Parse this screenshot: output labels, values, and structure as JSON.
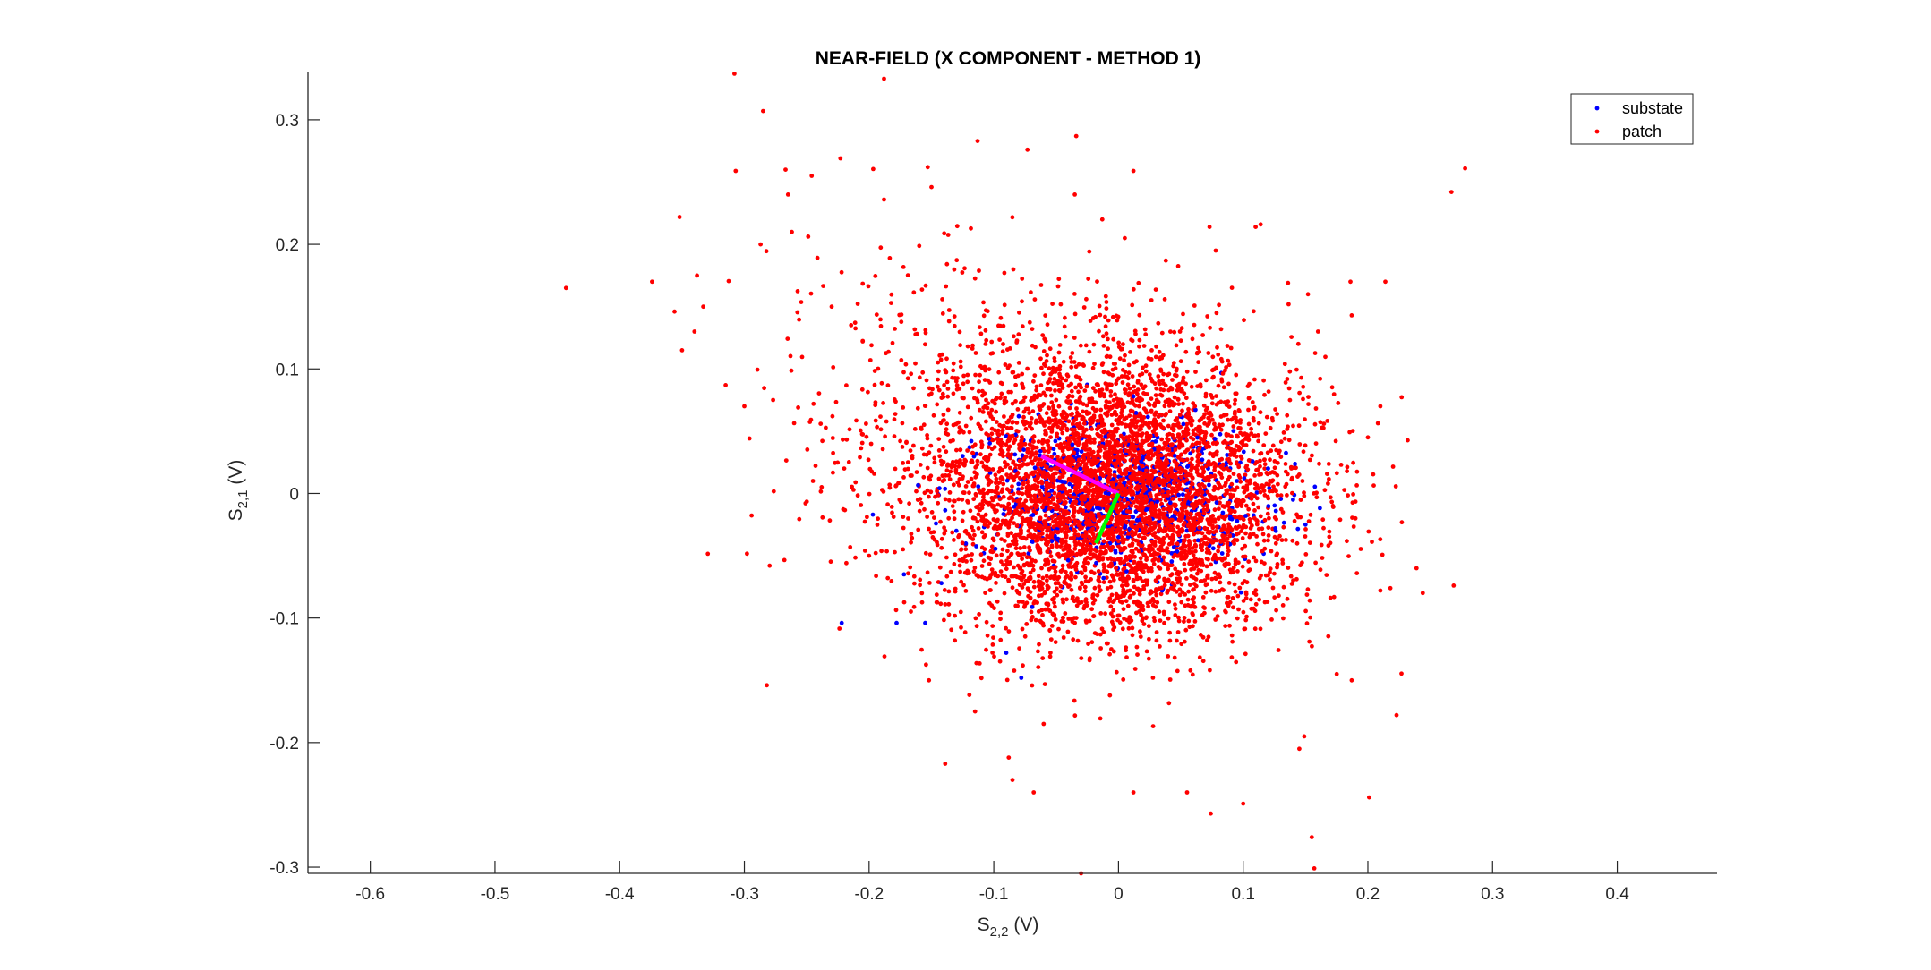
{
  "chart_data": {
    "type": "scatter",
    "title": "NEAR-FIELD (X COMPONENT - METHOD 1)",
    "xlabel": {
      "base": "S",
      "sub": "2,2",
      "unit": " (V)"
    },
    "ylabel": {
      "base": "S",
      "sub": "2,1",
      "unit": " (V)"
    },
    "xlim": [
      -0.65,
      0.48
    ],
    "ylim": [
      -0.305,
      0.338
    ],
    "xticks": [
      -0.6,
      -0.5,
      -0.4,
      -0.3,
      -0.2,
      -0.1,
      0,
      0.1,
      0.2,
      0.3,
      0.4
    ],
    "xtick_labels": [
      "-0.6",
      "-0.5",
      "-0.4",
      "-0.3",
      "-0.2",
      "-0.1",
      "0",
      "0.1",
      "0.2",
      "0.3",
      "0.4"
    ],
    "yticks": [
      -0.3,
      -0.2,
      -0.1,
      0,
      0.1,
      0.2,
      0.3
    ],
    "ytick_labels": [
      "-0.3",
      "-0.2",
      "-0.1",
      "0",
      "0.1",
      "0.2",
      "0.3"
    ],
    "grid": false,
    "legend_position": "top-right",
    "series": [
      {
        "name": "substate",
        "color": "#0000ff",
        "points": [
          [
            -0.222,
            -0.104
          ],
          [
            -0.178,
            -0.104
          ],
          [
            -0.155,
            -0.104
          ],
          [
            -0.197,
            -0.017
          ],
          [
            -0.172,
            -0.065
          ],
          [
            -0.142,
            -0.072
          ],
          [
            -0.108,
            -0.048
          ],
          [
            -0.118,
            0.042
          ],
          [
            -0.08,
            0.062
          ],
          [
            -0.038,
            0.072
          ],
          [
            0.012,
            0.078
          ],
          [
            0.055,
            0.064
          ],
          [
            0.088,
            0.04
          ],
          [
            0.102,
            -0.018
          ],
          [
            0.078,
            -0.055
          ],
          [
            0.035,
            -0.078
          ],
          [
            -0.012,
            -0.068
          ],
          [
            -0.052,
            -0.058
          ],
          [
            -0.078,
            -0.148
          ],
          [
            -0.09,
            -0.128
          ],
          [
            -0.035,
            -0.05
          ],
          [
            0.12,
            0.02
          ],
          [
            0.095,
            0.01
          ],
          [
            0.14,
            -0.005
          ],
          [
            0.15,
            -0.025
          ],
          [
            -0.145,
            0.0
          ],
          [
            -0.13,
            -0.03
          ],
          [
            -0.125,
            0.03
          ]
        ],
        "cluster": {
          "n": 650,
          "cx": 0.0,
          "cy": -0.002,
          "sx": 0.055,
          "sy": 0.028
        }
      },
      {
        "name": "patch",
        "color": "#ff0000",
        "points": [
          [
            -0.308,
            0.337
          ],
          [
            -0.188,
            0.333
          ],
          [
            -0.285,
            0.307
          ],
          [
            -0.307,
            0.259
          ],
          [
            -0.113,
            0.283
          ],
          [
            -0.073,
            0.276
          ],
          [
            -0.223,
            0.269
          ],
          [
            -0.246,
            0.255
          ],
          [
            -0.153,
            0.262
          ],
          [
            -0.15,
            0.246
          ],
          [
            -0.188,
            0.236
          ],
          [
            -0.265,
            0.24
          ],
          [
            -0.035,
            0.24
          ],
          [
            0.012,
            0.259
          ],
          [
            -0.352,
            0.222
          ],
          [
            -0.443,
            0.165
          ],
          [
            -0.374,
            0.17
          ],
          [
            -0.338,
            0.175
          ],
          [
            -0.333,
            0.15
          ],
          [
            -0.356,
            0.146
          ],
          [
            -0.34,
            0.13
          ],
          [
            -0.35,
            0.115
          ],
          [
            -0.315,
            0.087
          ],
          [
            -0.3,
            0.07
          ],
          [
            -0.287,
            0.2
          ],
          [
            -0.262,
            0.21
          ],
          [
            -0.23,
            0.15
          ],
          [
            -0.267,
            0.26
          ],
          [
            0.267,
            0.242
          ],
          [
            0.278,
            0.261
          ],
          [
            0.114,
            0.216
          ],
          [
            0.11,
            0.214
          ],
          [
            0.073,
            0.214
          ],
          [
            0.078,
            0.195
          ],
          [
            0.038,
            0.187
          ],
          [
            0.005,
            0.205
          ],
          [
            -0.013,
            0.22
          ],
          [
            0.136,
            0.169
          ],
          [
            0.186,
            0.17
          ],
          [
            0.214,
            0.17
          ],
          [
            0.152,
            0.16
          ],
          [
            0.187,
            0.143
          ],
          [
            0.16,
            0.13
          ],
          [
            0.155,
            -0.276
          ],
          [
            0.157,
            -0.301
          ],
          [
            -0.03,
            -0.305
          ],
          [
            0.201,
            -0.244
          ],
          [
            0.223,
            -0.178
          ],
          [
            0.244,
            -0.08
          ],
          [
            0.239,
            -0.06
          ],
          [
            0.218,
            -0.076
          ],
          [
            0.21,
            -0.078
          ],
          [
            -0.139,
            -0.217
          ],
          [
            -0.085,
            -0.23
          ],
          [
            -0.088,
            -0.212
          ],
          [
            0.1,
            -0.249
          ],
          [
            0.074,
            -0.257
          ],
          [
            0.149,
            -0.195
          ],
          [
            0.175,
            -0.145
          ],
          [
            0.187,
            -0.15
          ],
          [
            0.145,
            -0.205
          ],
          [
            0.055,
            -0.24
          ],
          [
            0.012,
            -0.24
          ],
          [
            -0.068,
            -0.24
          ],
          [
            -0.115,
            -0.175
          ],
          [
            -0.152,
            -0.15
          ],
          [
            -0.06,
            -0.185
          ],
          [
            0.21,
            0.07
          ],
          [
            0.2,
            0.045
          ],
          [
            0.19,
            -0.02
          ],
          [
            0.172,
            -0.01
          ],
          [
            -0.13,
            0.09
          ],
          [
            -0.2,
            -0.05
          ],
          [
            -0.185,
            -0.068
          ],
          [
            -0.245,
            0.01
          ],
          [
            -0.22,
            0.02
          ]
        ],
        "cluster": {
          "n": 5000,
          "cx": 0.0,
          "cy": 0.0,
          "sx": 0.072,
          "sy": 0.055
        },
        "tail": {
          "n": 420,
          "cx": -0.13,
          "cy": 0.07,
          "sx": 0.075,
          "sy": 0.07
        }
      }
    ],
    "annotations": [
      {
        "type": "line",
        "color": "#ff00ff",
        "from": [
          0.0,
          0.0
        ],
        "to": [
          -0.062,
          0.03
        ]
      },
      {
        "type": "line",
        "color": "#00ff00",
        "from": [
          0.0,
          0.0
        ],
        "to": [
          -0.018,
          -0.04
        ]
      }
    ]
  }
}
